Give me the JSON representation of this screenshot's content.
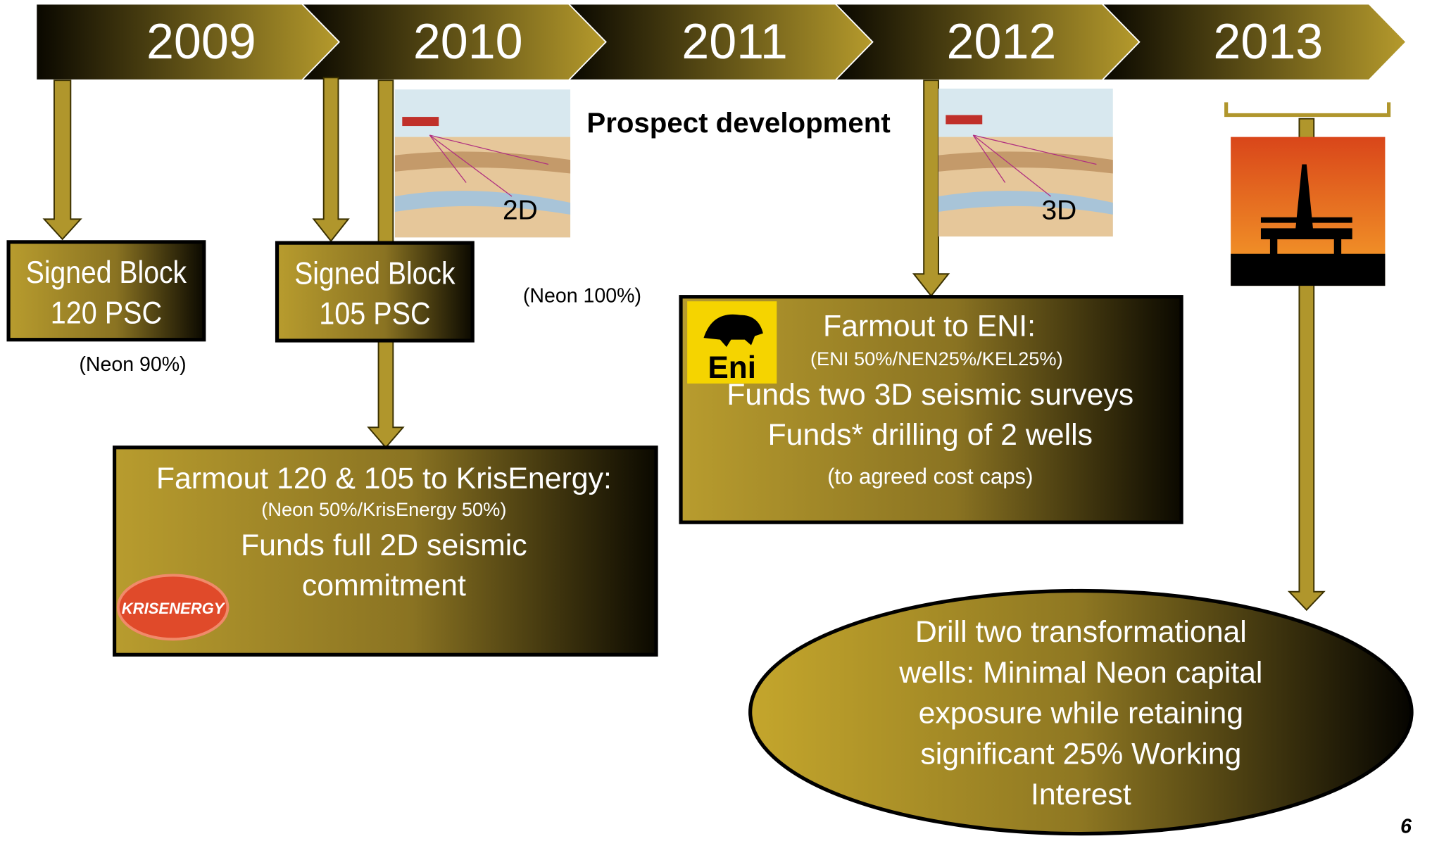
{
  "timeline": {
    "years": [
      "2009",
      "2010",
      "2011",
      "2012",
      "2013"
    ]
  },
  "block120": {
    "lines": [
      "Signed Block",
      "120 PSC"
    ],
    "note": "(Neon 90%)"
  },
  "block105": {
    "lines": [
      "Signed Block",
      "105 PSC"
    ],
    "note": "(Neon 100%)"
  },
  "prospect": "Prospect development",
  "seismic_2d": "2D",
  "seismic_3d": "3D",
  "krisenergy": {
    "title": "Farmout 120 & 105 to KrisEnergy:",
    "subtitle": "(Neon 50%/KrisEnergy 50%)",
    "lines": [
      "Funds full 2D seismic",
      "commitment"
    ],
    "logo": "KRISENERGY"
  },
  "eni": {
    "title": "Farmout to ENI:",
    "subtitle": "(ENI 50%/NEN25%/KEL25%)",
    "lines": [
      "Funds two 3D seismic surveys",
      "Funds* drilling of 2 wells"
    ],
    "note": "(to agreed cost caps)",
    "logo": "Eni"
  },
  "drill": {
    "lines": [
      "Drill two transformational",
      "wells: Minimal Neon capital",
      "exposure while retaining",
      "significant 25% Working",
      "Interest"
    ]
  },
  "page_number": "6"
}
